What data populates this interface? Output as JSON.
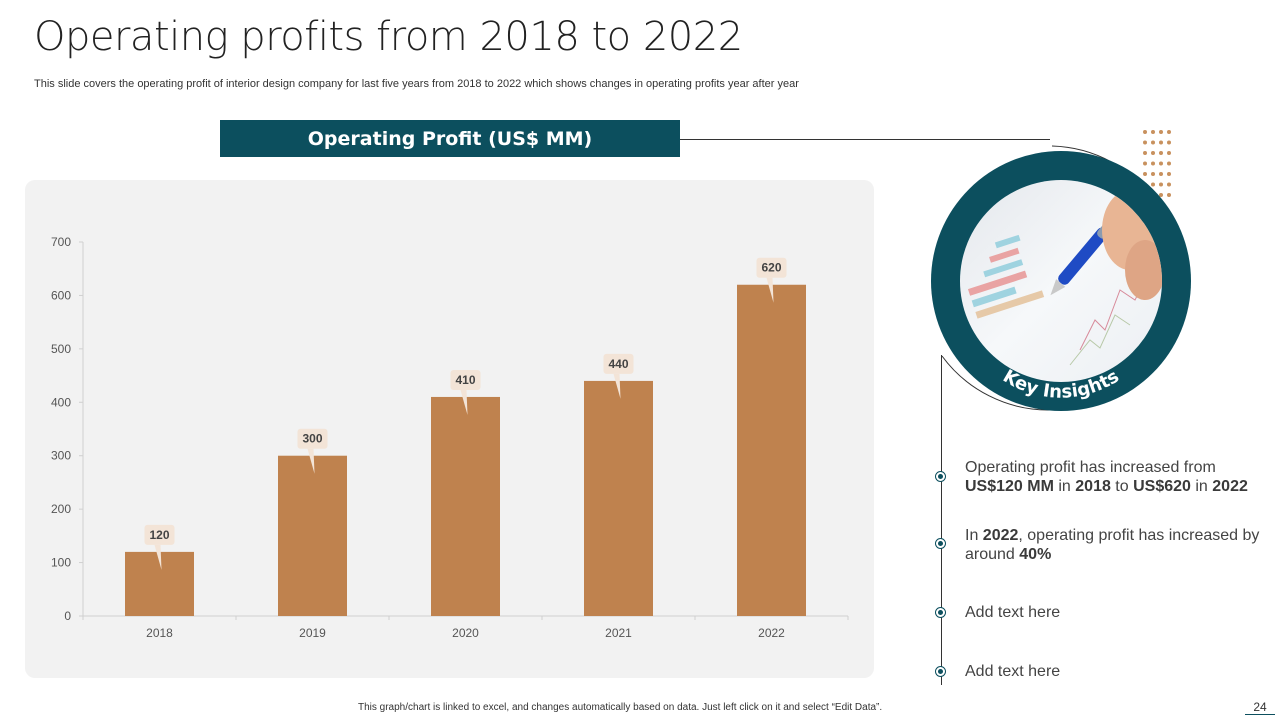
{
  "slide": {
    "title": "Operating profits from 2018 to 2022",
    "subtitle": "This slide covers the operating profit of interior design company for last five years from 2018 to 2022 which shows changes in operating profits year after year",
    "footnote": "This graph/chart is linked to excel, and changes automatically based on data. Just left click on it and select “Edit Data”.",
    "page_number": "24"
  },
  "colors": {
    "accent": "#0c4f5e",
    "bar": "#bf824e",
    "label_bg": "#f3e4d7",
    "dots": "#c8915e"
  },
  "chart_header": "Operating Profit (US$ MM)",
  "chart_data": {
    "type": "bar",
    "title": "Operating Profit (US$ MM)",
    "categories": [
      "2018",
      "2019",
      "2020",
      "2021",
      "2022"
    ],
    "values": [
      120,
      300,
      410,
      440,
      620
    ],
    "data_labels": [
      "120",
      "300",
      "410",
      "440",
      "620"
    ],
    "xlabel": "",
    "ylabel": "",
    "ylim": [
      0,
      700
    ],
    "yticks": [
      0,
      100,
      200,
      300,
      400,
      500,
      600,
      700
    ],
    "ytick_labels": [
      "0",
      "100",
      "200",
      "300",
      "400",
      "500",
      "600",
      "700"
    ],
    "grid": false,
    "legend": "none"
  },
  "key_insights": {
    "label": "Key Insights",
    "image": "hand-with-pen-over-charts-photo",
    "items": [
      {
        "parts": [
          {
            "t": "Operating profit has increased from ",
            "b": false
          },
          {
            "t": "US$120 MM",
            "b": true
          },
          {
            "t": " in ",
            "b": false
          },
          {
            "t": "2018",
            "b": true
          },
          {
            "t": " to ",
            "b": false
          },
          {
            "t": "US$620",
            "b": true
          },
          {
            "t": " in ",
            "b": false
          },
          {
            "t": "2022",
            "b": true
          }
        ]
      },
      {
        "parts": [
          {
            "t": "In ",
            "b": false
          },
          {
            "t": "2022",
            "b": true
          },
          {
            "t": ", operating profit has increased by around ",
            "b": false
          },
          {
            "t": "40%",
            "b": true
          }
        ]
      },
      {
        "parts": [
          {
            "t": "Add text here",
            "b": false
          }
        ]
      },
      {
        "parts": [
          {
            "t": "Add text here",
            "b": false
          }
        ]
      }
    ]
  }
}
